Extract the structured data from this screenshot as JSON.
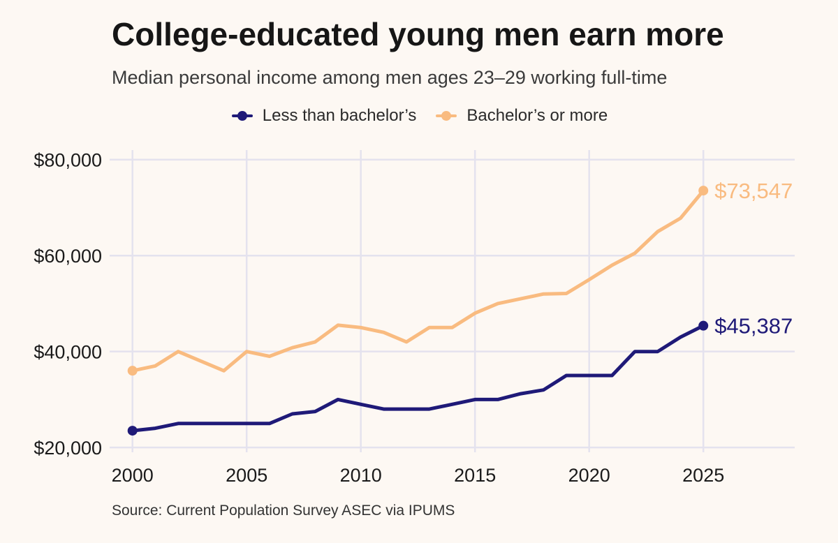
{
  "title": "College-educated young men earn more",
  "subtitle": "Median personal income among men ages 23–29 working full-time",
  "source": "Source: Current Population Survey ASEC via IPUMS",
  "chart_data": {
    "type": "line",
    "title": "College-educated young men earn more",
    "subtitle": "Median personal income among men ages 23–29 working full-time",
    "xlabel": "",
    "ylabel": "",
    "xlim": [
      1999,
      2029
    ],
    "ylim": [
      19000,
      82000
    ],
    "x_ticks": [
      2000,
      2005,
      2010,
      2015,
      2020,
      2025
    ],
    "x_tick_labels": [
      "2000",
      "2005",
      "2010",
      "2015",
      "2020",
      "2025"
    ],
    "y_ticks": [
      20000,
      40000,
      60000,
      80000
    ],
    "y_tick_labels": [
      "$20,000",
      "$40,000",
      "$60,000",
      "$80,000"
    ],
    "grid": true,
    "legend_position": "top-center",
    "x": [
      2000,
      2001,
      2002,
      2003,
      2004,
      2005,
      2006,
      2007,
      2008,
      2009,
      2010,
      2011,
      2012,
      2013,
      2014,
      2015,
      2016,
      2017,
      2018,
      2019,
      2020,
      2021,
      2022,
      2023,
      2024,
      2025
    ],
    "series": [
      {
        "name": "Less than bachelor’s",
        "color": "#1f1a78",
        "end_label": "$45,387",
        "values": [
          23500,
          24000,
          25000,
          25000,
          25000,
          25000,
          25000,
          27000,
          27500,
          30000,
          29000,
          28000,
          28000,
          28000,
          29000,
          30000,
          30000,
          31200,
          32000,
          35000,
          35000,
          35000,
          40000,
          40000,
          43000,
          45387
        ]
      },
      {
        "name": "Bachelor’s or more",
        "color": "#f9bb80",
        "end_label": "$73,547",
        "values": [
          36000,
          37000,
          40000,
          38000,
          36000,
          40000,
          39000,
          40800,
          42000,
          45500,
          45000,
          44000,
          42000,
          45000,
          45000,
          48000,
          50000,
          51000,
          52000,
          52100,
          55000,
          58000,
          60500,
          65000,
          67800,
          73547
        ]
      }
    ]
  }
}
